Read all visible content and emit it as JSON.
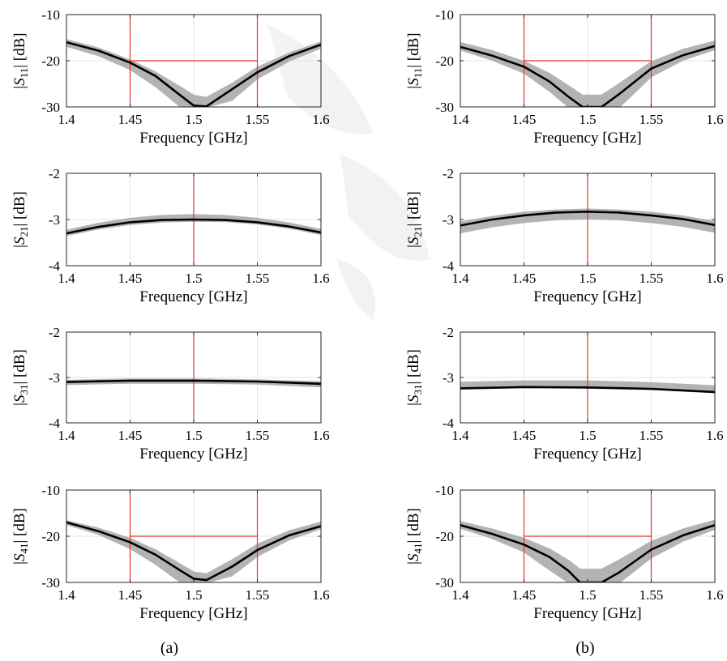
{
  "figure": {
    "panel_labels": [
      "(a)",
      "(b)"
    ],
    "colors": {
      "nominal": "#000000",
      "monte_carlo": "#b3b3b3",
      "spec": "#e8302a",
      "grid": "#e6e6e6",
      "axes": "#262626"
    }
  },
  "chart_data": [
    {
      "id": "a-s11",
      "type": "line",
      "column": "(a)",
      "ylabel_main": "S",
      "ylabel_sub": "11",
      "ylabel_unit": "[dB]",
      "xlabel": "Frequency [GHz]",
      "xlim": [
        1.4,
        1.6
      ],
      "ylim": [
        -30,
        -10
      ],
      "xticks": [
        "1.4",
        "1.45",
        "1.5",
        "1.55",
        "1.6"
      ],
      "yticks": [
        "-10",
        "-20",
        "-30"
      ],
      "spec_lines": {
        "vertical_x": [
          1.45,
          1.55
        ],
        "horizontal_y": -20,
        "horizontal_range": [
          1.45,
          1.55
        ]
      },
      "series": [
        {
          "role": "nominal",
          "x": [
            1.4,
            1.425,
            1.45,
            1.47,
            1.49,
            1.5,
            1.51,
            1.53,
            1.55,
            1.575,
            1.6
          ],
          "y": [
            -16.0,
            -17.8,
            -20.4,
            -23.3,
            -27.6,
            -29.7,
            -29.9,
            -26.2,
            -22.5,
            -19.0,
            -16.5
          ]
        },
        {
          "role": "monte_carlo_band",
          "x": [
            1.4,
            1.425,
            1.45,
            1.47,
            1.49,
            1.5,
            1.51,
            1.53,
            1.55,
            1.575,
            1.6
          ],
          "lower": [
            -16.8,
            -18.8,
            -21.8,
            -25.5,
            -30.0,
            -30.0,
            -30.0,
            -28.5,
            -23.8,
            -20.0,
            -17.2
          ],
          "upper": [
            -15.5,
            -17.3,
            -19.9,
            -22.5,
            -25.8,
            -27.5,
            -28.0,
            -25.0,
            -21.5,
            -18.4,
            -16.0
          ]
        }
      ]
    },
    {
      "id": "b-s11",
      "type": "line",
      "column": "(b)",
      "ylabel_main": "S",
      "ylabel_sub": "11",
      "ylabel_unit": "[dB]",
      "xlabel": "Frequency [GHz]",
      "xlim": [
        1.4,
        1.6
      ],
      "ylim": [
        -30,
        -10
      ],
      "xticks": [
        "1.4",
        "1.45",
        "1.5",
        "1.55",
        "1.6"
      ],
      "yticks": [
        "-10",
        "-20",
        "-30"
      ],
      "spec_lines": {
        "vertical_x": [
          1.45,
          1.55
        ],
        "horizontal_y": -20,
        "horizontal_range": [
          1.45,
          1.55
        ]
      },
      "series": [
        {
          "role": "nominal",
          "x": [
            1.4,
            1.425,
            1.45,
            1.47,
            1.485,
            1.496,
            1.511,
            1.525,
            1.55,
            1.575,
            1.6
          ],
          "y": [
            -17.0,
            -18.9,
            -21.3,
            -24.5,
            -27.8,
            -30.0,
            -30.0,
            -27.2,
            -21.7,
            -18.8,
            -16.8
          ]
        },
        {
          "role": "monte_carlo_band",
          "x": [
            1.4,
            1.425,
            1.45,
            1.47,
            1.485,
            1.496,
            1.511,
            1.525,
            1.55,
            1.575,
            1.6
          ],
          "lower": [
            -17.6,
            -19.8,
            -22.6,
            -26.5,
            -30.0,
            -30.0,
            -30.0,
            -30.0,
            -23.4,
            -19.8,
            -17.5
          ],
          "upper": [
            -16.1,
            -17.9,
            -20.2,
            -22.8,
            -25.5,
            -27.5,
            -27.5,
            -25.0,
            -20.3,
            -17.6,
            -15.8
          ]
        }
      ]
    },
    {
      "id": "a-s21",
      "type": "line",
      "column": "(a)",
      "ylabel_main": "S",
      "ylabel_sub": "21",
      "ylabel_unit": "[dB]",
      "xlabel": "Frequency [GHz]",
      "xlim": [
        1.4,
        1.6
      ],
      "ylim": [
        -4,
        -2
      ],
      "xticks": [
        "1.4",
        "1.45",
        "1.5",
        "1.55",
        "1.6"
      ],
      "yticks": [
        "-2",
        "-3",
        "-4"
      ],
      "spec_lines": {
        "vertical_x": [
          1.5
        ]
      },
      "series": [
        {
          "role": "nominal",
          "x": [
            1.4,
            1.425,
            1.45,
            1.475,
            1.5,
            1.525,
            1.55,
            1.575,
            1.6
          ],
          "y": [
            -3.3,
            -3.16,
            -3.06,
            -3.01,
            -3.0,
            -3.01,
            -3.06,
            -3.15,
            -3.28
          ]
        },
        {
          "role": "monte_carlo_band",
          "x": [
            1.4,
            1.425,
            1.45,
            1.475,
            1.5,
            1.525,
            1.55,
            1.575,
            1.6
          ],
          "lower": [
            -3.34,
            -3.2,
            -3.1,
            -3.05,
            -3.03,
            -3.04,
            -3.09,
            -3.18,
            -3.32
          ],
          "upper": [
            -3.24,
            -3.09,
            -2.98,
            -2.92,
            -2.9,
            -2.92,
            -2.98,
            -3.08,
            -3.22
          ]
        }
      ]
    },
    {
      "id": "b-s21",
      "type": "line",
      "column": "(b)",
      "ylabel_main": "S",
      "ylabel_sub": "21",
      "ylabel_unit": "[dB]",
      "xlabel": "Frequency [GHz]",
      "xlim": [
        1.4,
        1.6
      ],
      "ylim": [
        -4,
        -2
      ],
      "xticks": [
        "1.4",
        "1.45",
        "1.5",
        "1.55",
        "1.6"
      ],
      "yticks": [
        "-2",
        "-3",
        "-4"
      ],
      "spec_lines": {
        "vertical_x": [
          1.5
        ]
      },
      "series": [
        {
          "role": "nominal",
          "x": [
            1.4,
            1.425,
            1.45,
            1.475,
            1.5,
            1.525,
            1.55,
            1.575,
            1.6
          ],
          "y": [
            -3.13,
            -3.0,
            -2.91,
            -2.85,
            -2.83,
            -2.85,
            -2.91,
            -2.99,
            -3.12
          ]
        },
        {
          "role": "monte_carlo_band",
          "x": [
            1.4,
            1.425,
            1.45,
            1.475,
            1.5,
            1.525,
            1.55,
            1.575,
            1.6
          ],
          "lower": [
            -3.28,
            -3.15,
            -3.06,
            -3.0,
            -2.98,
            -3.0,
            -3.06,
            -3.14,
            -3.27
          ],
          "upper": [
            -3.06,
            -2.94,
            -2.85,
            -2.8,
            -2.78,
            -2.8,
            -2.85,
            -2.93,
            -3.05
          ]
        }
      ]
    },
    {
      "id": "a-s31",
      "type": "line",
      "column": "(a)",
      "ylabel_main": "S",
      "ylabel_sub": "31",
      "ylabel_unit": "[dB]",
      "xlabel": "Frequency [GHz]",
      "xlim": [
        1.4,
        1.6
      ],
      "ylim": [
        -4,
        -2
      ],
      "xticks": [
        "1.4",
        "1.45",
        "1.5",
        "1.55",
        "1.6"
      ],
      "yticks": [
        "-2",
        "-3",
        "-4"
      ],
      "spec_lines": {
        "vertical_x": [
          1.5
        ]
      },
      "series": [
        {
          "role": "nominal",
          "x": [
            1.4,
            1.45,
            1.5,
            1.55,
            1.6
          ],
          "y": [
            -3.1,
            -3.07,
            -3.07,
            -3.09,
            -3.14
          ]
        },
        {
          "role": "monte_carlo_band",
          "x": [
            1.4,
            1.45,
            1.5,
            1.55,
            1.6
          ],
          "lower": [
            -3.15,
            -3.12,
            -3.12,
            -3.14,
            -3.2
          ],
          "upper": [
            -3.07,
            -3.04,
            -3.04,
            -3.06,
            -3.1
          ]
        }
      ]
    },
    {
      "id": "b-s31",
      "type": "line",
      "column": "(b)",
      "ylabel_main": "S",
      "ylabel_sub": "31",
      "ylabel_unit": "[dB]",
      "xlabel": "Frequency [GHz]",
      "xlim": [
        1.4,
        1.6
      ],
      "ylim": [
        -4,
        -2
      ],
      "xticks": [
        "1.4",
        "1.45",
        "1.5",
        "1.55",
        "1.6"
      ],
      "yticks": [
        "-2",
        "-3",
        "-4"
      ],
      "spec_lines": {
        "vertical_x": [
          1.5
        ]
      },
      "series": [
        {
          "role": "nominal",
          "x": [
            1.4,
            1.45,
            1.5,
            1.55,
            1.6
          ],
          "y": [
            -3.24,
            -3.21,
            -3.22,
            -3.25,
            -3.32
          ]
        },
        {
          "role": "monte_carlo_band",
          "x": [
            1.4,
            1.45,
            1.5,
            1.55,
            1.6
          ],
          "lower": [
            -3.25,
            -3.22,
            -3.23,
            -3.26,
            -3.33
          ],
          "upper": [
            -3.11,
            -3.08,
            -3.08,
            -3.12,
            -3.19
          ]
        }
      ]
    },
    {
      "id": "a-s41",
      "type": "line",
      "column": "(a)",
      "ylabel_main": "S",
      "ylabel_sub": "41",
      "ylabel_unit": "[dB]",
      "xlabel": "Frequency [GHz]",
      "xlim": [
        1.4,
        1.6
      ],
      "ylim": [
        -30,
        -10
      ],
      "xticks": [
        "1.4",
        "1.45",
        "1.5",
        "1.55",
        "1.6"
      ],
      "yticks": [
        "-10",
        "-20",
        "-30"
      ],
      "spec_lines": {
        "vertical_x": [
          1.45,
          1.55
        ],
        "horizontal_y": -20,
        "horizontal_range": [
          1.45,
          1.55
        ]
      },
      "series": [
        {
          "role": "nominal",
          "x": [
            1.4,
            1.425,
            1.45,
            1.47,
            1.49,
            1.5,
            1.51,
            1.53,
            1.55,
            1.575,
            1.6
          ],
          "y": [
            -17.0,
            -18.9,
            -21.3,
            -24.0,
            -27.5,
            -29.2,
            -29.5,
            -26.6,
            -23.0,
            -19.8,
            -17.8
          ]
        },
        {
          "role": "monte_carlo_band",
          "x": [
            1.4,
            1.425,
            1.45,
            1.47,
            1.49,
            1.5,
            1.51,
            1.53,
            1.55,
            1.575,
            1.6
          ],
          "lower": [
            -17.4,
            -19.5,
            -22.6,
            -26.0,
            -30.0,
            -30.0,
            -30.0,
            -28.5,
            -24.3,
            -20.7,
            -18.3
          ],
          "upper": [
            -16.7,
            -18.3,
            -20.5,
            -23.0,
            -26.2,
            -27.8,
            -28.2,
            -25.2,
            -21.8,
            -18.9,
            -17.0
          ]
        }
      ]
    },
    {
      "id": "b-s41",
      "type": "line",
      "column": "(b)",
      "ylabel_main": "S",
      "ylabel_sub": "41",
      "ylabel_unit": "[dB]",
      "xlabel": "Frequency [GHz]",
      "xlim": [
        1.4,
        1.6
      ],
      "ylim": [
        -30,
        -10
      ],
      "xticks": [
        "1.4",
        "1.45",
        "1.5",
        "1.55",
        "1.6"
      ],
      "yticks": [
        "-10",
        "-20",
        "-30"
      ],
      "spec_lines": {
        "vertical_x": [
          1.45,
          1.55
        ],
        "horizontal_y": -20,
        "horizontal_range": [
          1.45,
          1.55
        ]
      },
      "series": [
        {
          "role": "nominal",
          "x": [
            1.4,
            1.425,
            1.45,
            1.47,
            1.485,
            1.494,
            1.511,
            1.525,
            1.55,
            1.575,
            1.6
          ],
          "y": [
            -17.6,
            -19.5,
            -21.8,
            -24.5,
            -27.5,
            -30.0,
            -30.0,
            -27.8,
            -22.9,
            -19.8,
            -17.6
          ]
        },
        {
          "role": "monte_carlo_band",
          "x": [
            1.4,
            1.425,
            1.45,
            1.47,
            1.485,
            1.494,
            1.511,
            1.525,
            1.55,
            1.575,
            1.6
          ],
          "lower": [
            -18.2,
            -20.4,
            -23.3,
            -27.2,
            -30.0,
            -30.0,
            -30.0,
            -30.0,
            -24.6,
            -21.0,
            -18.4
          ],
          "upper": [
            -16.9,
            -18.5,
            -20.5,
            -22.8,
            -25.3,
            -27.2,
            -27.2,
            -25.2,
            -21.2,
            -18.5,
            -16.6
          ]
        }
      ]
    }
  ]
}
